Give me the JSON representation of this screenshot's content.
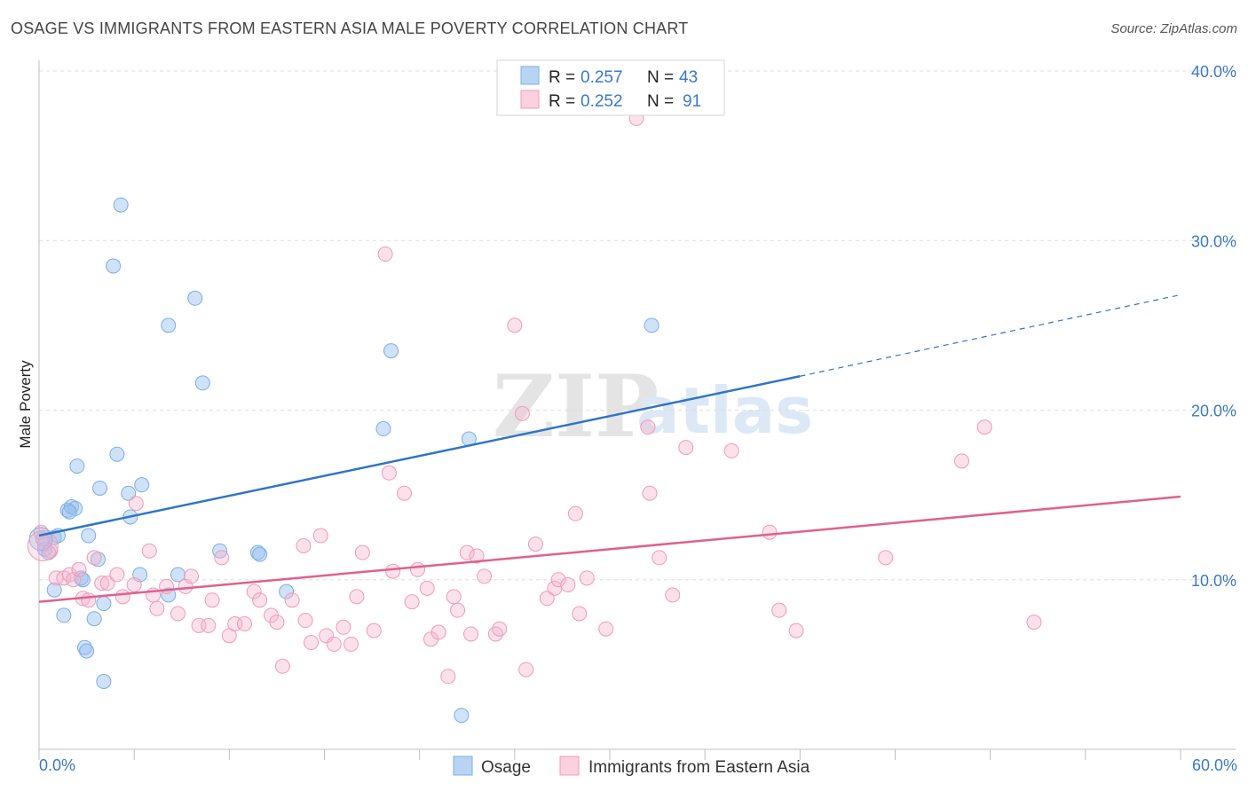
{
  "title": "OSAGE VS IMMIGRANTS FROM EASTERN ASIA MALE POVERTY CORRELATION CHART",
  "source": "Source: ZipAtlas.com",
  "watermark": {
    "zip": "ZIP",
    "atlas": "atlas"
  },
  "colors": {
    "osage": "#7aaee8",
    "osage_line": "#2f74c8",
    "eastern_asia": "#f09ab8",
    "eastern_asia_line": "#e0608f",
    "axis_text": "#3a78c9"
  },
  "legend": {
    "rows": [
      {
        "r_label": "R =",
        "r_value": "0.257",
        "n_label": "N =",
        "n_value": "43"
      },
      {
        "r_label": "R =",
        "r_value": "0.252",
        "n_label": "N =",
        "n_value": "91"
      }
    ]
  },
  "bottom_legend": {
    "osage": "Osage",
    "eastern_asia": "Immigrants from Eastern Asia"
  },
  "chart_data": {
    "type": "scatter",
    "title": "OSAGE VS IMMIGRANTS FROM EASTERN ASIA MALE POVERTY CORRELATION CHART",
    "xlabel": "",
    "ylabel": "Male Poverty",
    "xlim": [
      0,
      60
    ],
    "ylim": [
      0,
      40
    ],
    "x_tick_labels": {
      "left": "0.0%",
      "right": "60.0%"
    },
    "y_ticks": [
      {
        "value": 10,
        "label": "10.0%"
      },
      {
        "value": 20,
        "label": "20.0%"
      },
      {
        "value": 30,
        "label": "30.0%"
      },
      {
        "value": 40,
        "label": "40.0%"
      }
    ],
    "series": [
      {
        "name": "Osage",
        "r": 0.257,
        "n": 43,
        "trend": {
          "x0": 0,
          "y0": 12.6,
          "x1": 40,
          "y1": 22.0,
          "dash_x1": 60,
          "dash_y1": 26.8
        },
        "points": [
          [
            0.2,
            12.4
          ],
          [
            0.3,
            11.8
          ],
          [
            0.5,
            11.6
          ],
          [
            0.8,
            12.5
          ],
          [
            1.0,
            12.6
          ],
          [
            0.8,
            9.4
          ],
          [
            1.3,
            7.9
          ],
          [
            1.5,
            14.1
          ],
          [
            1.7,
            14.3
          ],
          [
            1.9,
            14.2
          ],
          [
            2.0,
            16.7
          ],
          [
            2.2,
            10.1
          ],
          [
            2.3,
            10.0
          ],
          [
            2.6,
            12.6
          ],
          [
            2.4,
            6.0
          ],
          [
            2.5,
            5.8
          ],
          [
            2.9,
            7.7
          ],
          [
            3.1,
            11.2
          ],
          [
            3.2,
            15.4
          ],
          [
            3.4,
            8.6
          ],
          [
            3.4,
            4.0
          ],
          [
            3.9,
            28.5
          ],
          [
            4.1,
            17.4
          ],
          [
            4.3,
            32.1
          ],
          [
            4.7,
            15.1
          ],
          [
            4.8,
            13.7
          ],
          [
            5.3,
            10.3
          ],
          [
            5.4,
            15.6
          ],
          [
            6.8,
            25.0
          ],
          [
            6.8,
            9.1
          ],
          [
            7.3,
            10.3
          ],
          [
            8.2,
            26.6
          ],
          [
            8.6,
            21.6
          ],
          [
            9.5,
            11.7
          ],
          [
            11.5,
            11.6
          ],
          [
            11.6,
            11.5
          ],
          [
            13.0,
            9.3
          ],
          [
            18.1,
            18.9
          ],
          [
            18.5,
            23.5
          ],
          [
            22.2,
            2.0
          ],
          [
            22.6,
            18.3
          ],
          [
            32.2,
            25.0
          ],
          [
            1.6,
            14.0
          ]
        ]
      },
      {
        "name": "Immigrants from Eastern Asia",
        "r": 0.252,
        "n": 91,
        "trend": {
          "x0": 0,
          "y0": 8.7,
          "x1": 60,
          "y1": 14.9
        },
        "points": [
          [
            0.1,
            12.8
          ],
          [
            0.3,
            12.1
          ],
          [
            0.6,
            11.7
          ],
          [
            0.9,
            10.1
          ],
          [
            1.3,
            10.1
          ],
          [
            1.6,
            10.3
          ],
          [
            1.8,
            10.0
          ],
          [
            2.1,
            10.6
          ],
          [
            2.3,
            8.9
          ],
          [
            2.6,
            8.8
          ],
          [
            2.9,
            11.3
          ],
          [
            3.3,
            9.8
          ],
          [
            3.6,
            9.8
          ],
          [
            4.1,
            10.3
          ],
          [
            4.4,
            9.0
          ],
          [
            5.0,
            9.7
          ],
          [
            5.1,
            14.5
          ],
          [
            5.8,
            11.7
          ],
          [
            6.0,
            9.1
          ],
          [
            6.2,
            8.3
          ],
          [
            6.7,
            9.6
          ],
          [
            7.3,
            8.0
          ],
          [
            7.7,
            9.6
          ],
          [
            8.0,
            10.2
          ],
          [
            8.4,
            7.3
          ],
          [
            8.9,
            7.3
          ],
          [
            9.1,
            8.8
          ],
          [
            9.6,
            11.3
          ],
          [
            10.0,
            6.7
          ],
          [
            10.3,
            7.4
          ],
          [
            10.8,
            7.4
          ],
          [
            11.3,
            9.3
          ],
          [
            11.6,
            8.8
          ],
          [
            12.2,
            7.9
          ],
          [
            12.5,
            7.5
          ],
          [
            12.8,
            4.9
          ],
          [
            13.3,
            8.8
          ],
          [
            13.9,
            12.0
          ],
          [
            14.0,
            7.6
          ],
          [
            14.3,
            6.3
          ],
          [
            14.8,
            12.6
          ],
          [
            15.1,
            6.7
          ],
          [
            15.5,
            6.2
          ],
          [
            16.0,
            7.2
          ],
          [
            16.4,
            6.2
          ],
          [
            16.7,
            9.0
          ],
          [
            17.0,
            11.6
          ],
          [
            17.6,
            7.0
          ],
          [
            18.2,
            29.2
          ],
          [
            18.4,
            16.3
          ],
          [
            18.6,
            10.5
          ],
          [
            19.2,
            15.1
          ],
          [
            19.6,
            8.7
          ],
          [
            19.9,
            10.6
          ],
          [
            20.4,
            9.5
          ],
          [
            20.6,
            6.5
          ],
          [
            21.0,
            6.9
          ],
          [
            21.5,
            4.3
          ],
          [
            21.8,
            9.0
          ],
          [
            22.0,
            8.2
          ],
          [
            22.5,
            11.6
          ],
          [
            22.7,
            6.8
          ],
          [
            23.0,
            11.4
          ],
          [
            23.4,
            10.2
          ],
          [
            24.0,
            6.8
          ],
          [
            24.2,
            7.1
          ],
          [
            25.0,
            25.0
          ],
          [
            25.4,
            19.8
          ],
          [
            25.6,
            4.7
          ],
          [
            26.1,
            12.1
          ],
          [
            26.7,
            8.9
          ],
          [
            27.1,
            9.5
          ],
          [
            27.3,
            10.0
          ],
          [
            27.8,
            9.7
          ],
          [
            28.2,
            13.9
          ],
          [
            28.4,
            8.0
          ],
          [
            28.8,
            10.1
          ],
          [
            29.8,
            7.1
          ],
          [
            32.0,
            19.0
          ],
          [
            32.1,
            15.1
          ],
          [
            32.6,
            11.3
          ],
          [
            33.3,
            9.1
          ],
          [
            34.0,
            17.8
          ],
          [
            36.4,
            17.6
          ],
          [
            38.4,
            12.8
          ],
          [
            38.9,
            8.2
          ],
          [
            39.8,
            7.0
          ],
          [
            44.5,
            11.3
          ],
          [
            48.5,
            17.0
          ],
          [
            49.7,
            19.0
          ],
          [
            52.3,
            7.5
          ]
        ]
      }
    ],
    "extra_points": [
      [
        31.4,
        37.2
      ]
    ]
  }
}
